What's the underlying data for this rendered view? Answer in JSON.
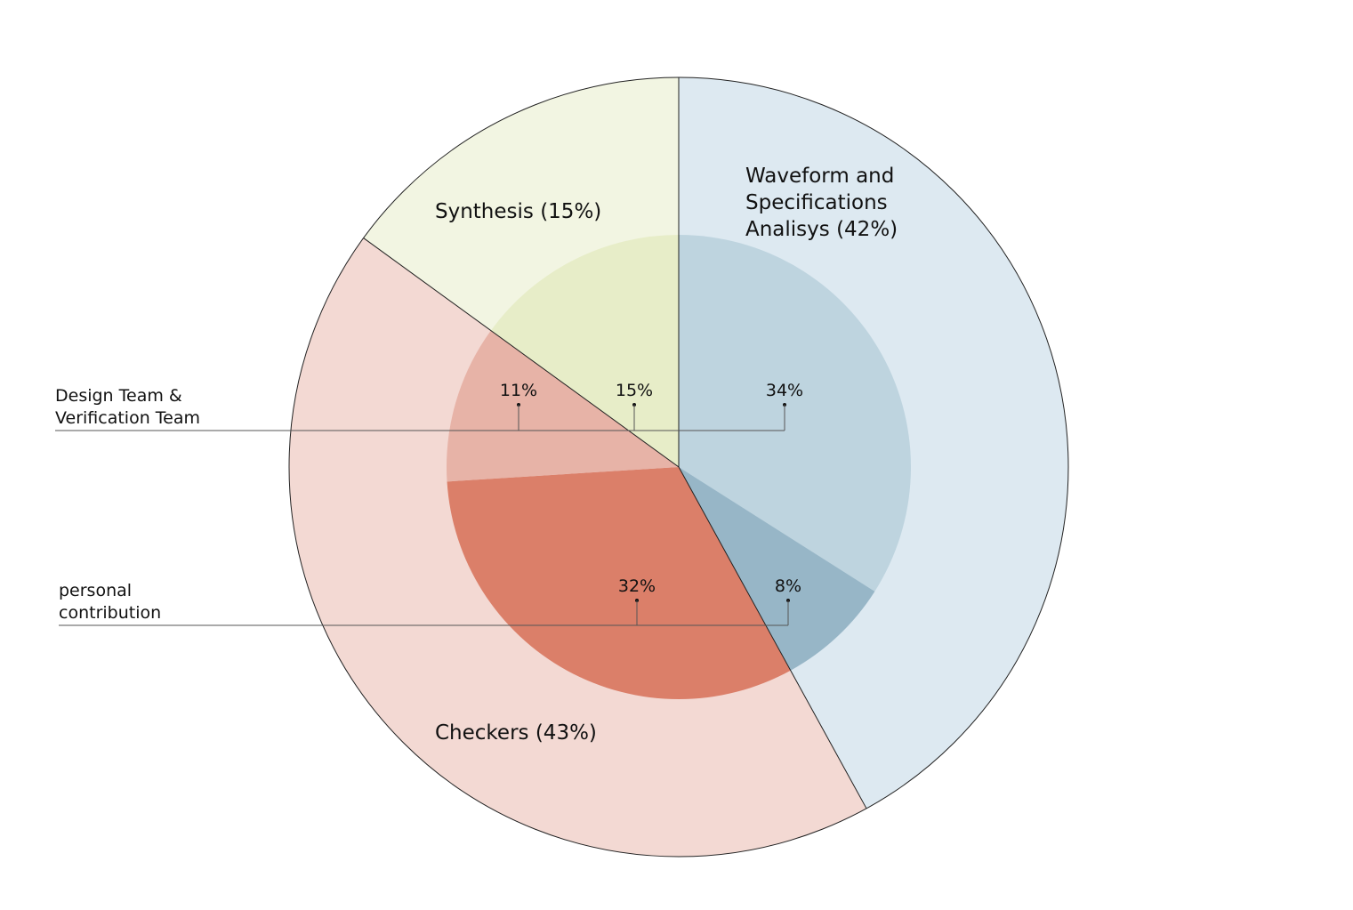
{
  "chart_data": {
    "type": "pie",
    "outer": {
      "slices": [
        {
          "label": "Waveform and Specifications Analisys (42%)",
          "label_lines": [
            "Waveform and",
            "Specifications",
            "Analisys (42%)"
          ],
          "value": 42,
          "color": "#dde9f1"
        },
        {
          "label": "Checkers (43%)",
          "label_lines": [
            "Checkers (43%)"
          ],
          "value": 43,
          "color": "#f3d9d3"
        },
        {
          "label": "Synthesis (15%)",
          "label_lines": [
            "Synthesis (15%)"
          ],
          "value": 15,
          "color": "#f2f5e2"
        }
      ]
    },
    "inner": {
      "slices": [
        {
          "label": "34%",
          "value": 34,
          "group": "Design Team & Verification Team",
          "color": "#bed4df"
        },
        {
          "label": "8%",
          "value": 8,
          "group": "personal contribution",
          "color": "#97b6c7"
        },
        {
          "label": "32%",
          "value": 32,
          "group": "personal contribution",
          "color": "#db7f69"
        },
        {
          "label": "11%",
          "value": 11,
          "group": "Design Team & Verification Team",
          "color": "#e7b3a7"
        },
        {
          "label": "15%",
          "value": 15,
          "group": "Design Team & Verification Team",
          "color": "#e7edc8"
        }
      ]
    },
    "legend": [
      {
        "label": "Design Team & Verification Team",
        "label_lines": [
          "Design Team &",
          "Verification Team"
        ]
      },
      {
        "label": "personal contribution",
        "label_lines": [
          "personal",
          "contribution"
        ]
      }
    ]
  }
}
